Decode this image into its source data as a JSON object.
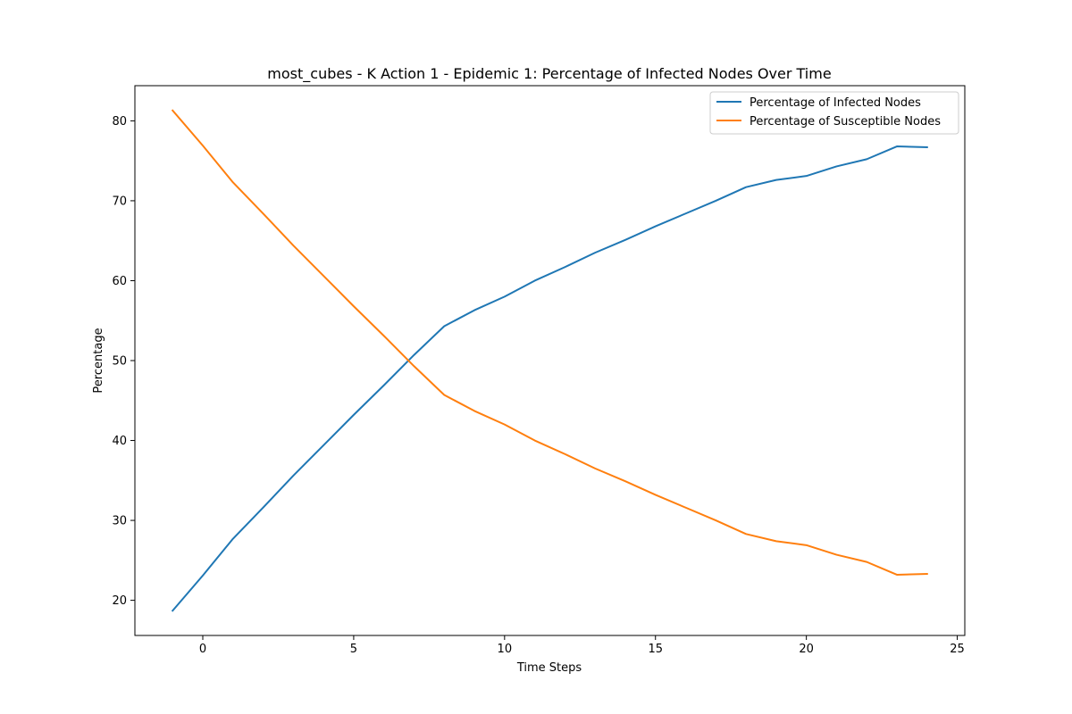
{
  "chart_data": {
    "type": "line",
    "title": "most_cubes - K Action 1 - Epidemic 1: Percentage of Infected Nodes Over Time",
    "xlabel": "Time Steps",
    "ylabel": "Percentage",
    "xlim": [
      -2.25,
      25.25
    ],
    "ylim": [
      15.6,
      84.4
    ],
    "xticks": [
      0,
      5,
      10,
      15,
      20,
      25
    ],
    "yticks": [
      20,
      30,
      40,
      50,
      60,
      70,
      80
    ],
    "grid": false,
    "legend_position": "upper right",
    "x": [
      -1,
      0,
      1,
      2,
      3,
      4,
      5,
      6,
      7,
      8,
      9,
      10,
      11,
      12,
      13,
      14,
      15,
      16,
      17,
      18,
      19,
      20,
      21,
      22,
      23,
      24
    ],
    "series": [
      {
        "name": "Percentage of Infected Nodes",
        "color": "#1f77b4",
        "values": [
          18.7,
          23.1,
          27.7,
          31.6,
          35.6,
          39.4,
          43.2,
          46.9,
          50.7,
          54.3,
          56.3,
          58.0,
          60.0,
          61.7,
          63.5,
          65.1,
          66.8,
          68.4,
          70.0,
          71.7,
          72.6,
          73.1,
          74.3,
          75.2,
          76.8,
          76.7
        ]
      },
      {
        "name": "Percentage of Susceptible Nodes",
        "color": "#ff7f0e",
        "values": [
          81.3,
          76.9,
          72.3,
          68.4,
          64.4,
          60.6,
          56.8,
          53.1,
          49.3,
          45.7,
          43.7,
          42.0,
          40.0,
          38.3,
          36.5,
          34.9,
          33.2,
          31.6,
          30.0,
          28.3,
          27.4,
          26.9,
          25.7,
          24.8,
          23.2,
          23.3
        ]
      }
    ]
  }
}
